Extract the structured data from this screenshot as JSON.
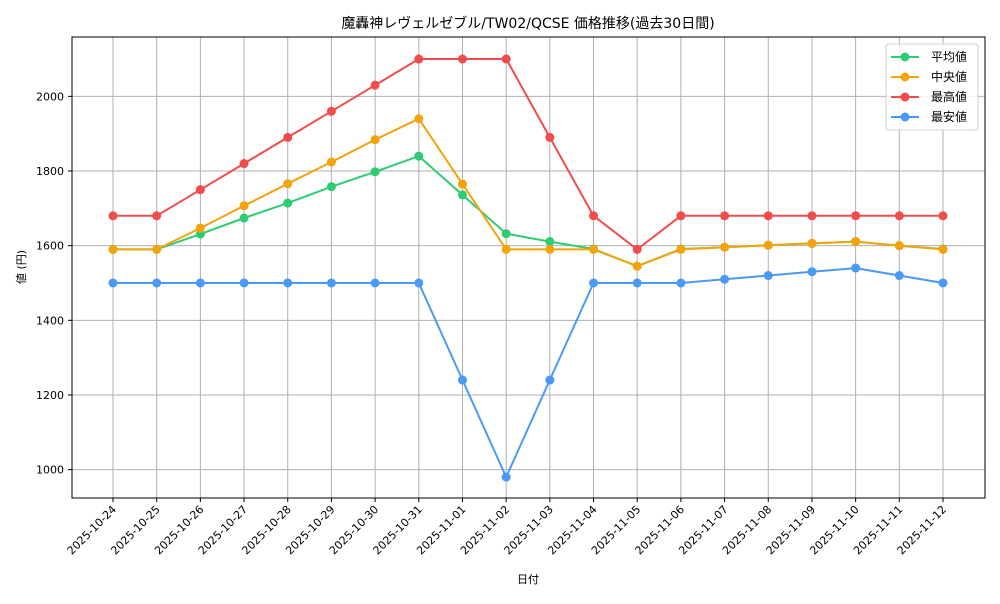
{
  "chart_data": {
    "type": "line",
    "title": "魔轟神レヴェルゼブル/TW02/QCSE 価格推移(過去30日間)",
    "xlabel": "日付",
    "ylabel": "値 (円)",
    "ylim": [
      924,
      2159
    ],
    "yticks": [
      1000,
      1200,
      1400,
      1600,
      1800,
      2000
    ],
    "grid": true,
    "legend_position": "upper right",
    "x": [
      "2025-10-24",
      "2025-10-25",
      "2025-10-26",
      "2025-10-27",
      "2025-10-28",
      "2025-10-29",
      "2025-10-30",
      "2025-10-31",
      "2025-11-01",
      "2025-11-02",
      "2025-11-03",
      "2025-11-04",
      "2025-11-05",
      "2025-11-06",
      "2025-11-07",
      "2025-11-08",
      "2025-11-09",
      "2025-11-10",
      "2025-11-11",
      "2025-11-12"
    ],
    "series": [
      {
        "name": "平均値",
        "color": "#2ecc71",
        "values": [
          1590,
          1590,
          1631,
          1674,
          1714,
          1758,
          1798,
          1840,
          1736,
          1632,
          1611,
          1591,
          1545,
          1591,
          1596,
          1601,
          1606,
          1611,
          1600,
          1591
        ]
      },
      {
        "name": "中央値",
        "color": "#f5a30a",
        "values": [
          1590,
          1590,
          1647,
          1707,
          1766,
          1824,
          1884,
          1940,
          1765,
          1590,
          1590,
          1590,
          1545,
          1590,
          1596,
          1601,
          1606,
          1611,
          1600,
          1590
        ]
      },
      {
        "name": "最高値",
        "color": "#f24b4b",
        "values": [
          1680,
          1680,
          1750,
          1820,
          1890,
          1960,
          2030,
          2100,
          2100,
          2100,
          1890,
          1680,
          1590,
          1680,
          1680,
          1680,
          1680,
          1680,
          1680,
          1680
        ]
      },
      {
        "name": "最安値",
        "color": "#4a9af5",
        "values": [
          1500,
          1500,
          1500,
          1500,
          1500,
          1500,
          1500,
          1500,
          1240,
          980,
          1240,
          1500,
          1500,
          1500,
          1510,
          1520,
          1530,
          1540,
          1520,
          1500
        ]
      }
    ]
  }
}
